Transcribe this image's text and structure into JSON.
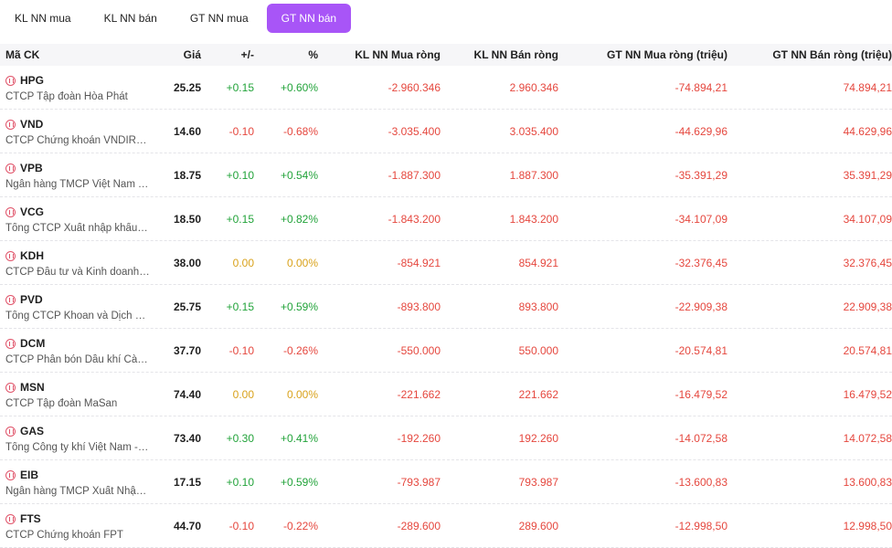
{
  "tabs": [
    {
      "label": "KL NN mua",
      "active": false
    },
    {
      "label": "KL NN bán",
      "active": false
    },
    {
      "label": "GT NN mua",
      "active": false
    },
    {
      "label": "GT NN bán",
      "active": true
    }
  ],
  "columns": {
    "symbol": "Mã CK",
    "price": "Giá",
    "change": "+/-",
    "percent": "%",
    "kl_mua": "KL NN Mua ròng",
    "kl_ban": "KL NN Bán ròng",
    "gt_mua": "GT NN Mua ròng (triệu)",
    "gt_ban": "GT NN Bán ròng (triệu)"
  },
  "colors": {
    "accent": "#a855f7",
    "up": "#22a33a",
    "down": "#e5473e",
    "ref": "#d9a21b"
  },
  "rows": [
    {
      "code": "HPG",
      "name": "CTCP Tập đoàn Hòa Phát",
      "price": "25.25",
      "change": "+0.15",
      "percent": "+0.60%",
      "dir": "up",
      "kl_mua": "-2.960.346",
      "kl_ban": "2.960.346",
      "gt_mua": "-74.894,21",
      "gt_ban": "74.894,21"
    },
    {
      "code": "VND",
      "name": "CTCP Chứng khoán VNDIRECT",
      "price": "14.60",
      "change": "-0.10",
      "percent": "-0.68%",
      "dir": "down",
      "kl_mua": "-3.035.400",
      "kl_ban": "3.035.400",
      "gt_mua": "-44.629,96",
      "gt_ban": "44.629,96"
    },
    {
      "code": "VPB",
      "name": "Ngân hàng TMCP Việt Nam Thịnh Vượng",
      "price": "18.75",
      "change": "+0.10",
      "percent": "+0.54%",
      "dir": "up",
      "kl_mua": "-1.887.300",
      "kl_ban": "1.887.300",
      "gt_mua": "-35.391,29",
      "gt_ban": "35.391,29"
    },
    {
      "code": "VCG",
      "name": "Tổng CTCP Xuất nhập khẩu và Xây dựng Việt Nam",
      "price": "18.50",
      "change": "+0.15",
      "percent": "+0.82%",
      "dir": "up",
      "kl_mua": "-1.843.200",
      "kl_ban": "1.843.200",
      "gt_mua": "-34.107,09",
      "gt_ban": "34.107,09"
    },
    {
      "code": "KDH",
      "name": "CTCP Đầu tư và Kinh doanh Nhà Khang Điền",
      "price": "38.00",
      "change": "0.00",
      "percent": "0.00%",
      "dir": "ref",
      "kl_mua": "-854.921",
      "kl_ban": "854.921",
      "gt_mua": "-32.376,45",
      "gt_ban": "32.376,45"
    },
    {
      "code": "PVD",
      "name": "Tổng CTCP Khoan và Dịch vụ Khoan Dầu khí",
      "price": "25.75",
      "change": "+0.15",
      "percent": "+0.59%",
      "dir": "up",
      "kl_mua": "-893.800",
      "kl_ban": "893.800",
      "gt_mua": "-22.909,38",
      "gt_ban": "22.909,38"
    },
    {
      "code": "DCM",
      "name": "CTCP Phân bón Dầu khí Cà Mau",
      "price": "37.70",
      "change": "-0.10",
      "percent": "-0.26%",
      "dir": "down",
      "kl_mua": "-550.000",
      "kl_ban": "550.000",
      "gt_mua": "-20.574,81",
      "gt_ban": "20.574,81"
    },
    {
      "code": "MSN",
      "name": "CTCP Tập đoàn MaSan",
      "price": "74.40",
      "change": "0.00",
      "percent": "0.00%",
      "dir": "ref",
      "kl_mua": "-221.662",
      "kl_ban": "221.662",
      "gt_mua": "-16.479,52",
      "gt_ban": "16.479,52"
    },
    {
      "code": "GAS",
      "name": "Tổng Công ty khí Việt Nam - CTCP",
      "price": "73.40",
      "change": "+0.30",
      "percent": "+0.41%",
      "dir": "up",
      "kl_mua": "-192.260",
      "kl_ban": "192.260",
      "gt_mua": "-14.072,58",
      "gt_ban": "14.072,58"
    },
    {
      "code": "EIB",
      "name": "Ngân hàng TMCP Xuất Nhập khẩu Việt Nam",
      "price": "17.15",
      "change": "+0.10",
      "percent": "+0.59%",
      "dir": "up",
      "kl_mua": "-793.987",
      "kl_ban": "793.987",
      "gt_mua": "-13.600,83",
      "gt_ban": "13.600,83"
    },
    {
      "code": "FTS",
      "name": "CTCP Chứng khoán FPT",
      "price": "44.70",
      "change": "-0.10",
      "percent": "-0.22%",
      "dir": "down",
      "kl_mua": "-289.600",
      "kl_ban": "289.600",
      "gt_mua": "-12.998,50",
      "gt_ban": "12.998,50"
    }
  ]
}
